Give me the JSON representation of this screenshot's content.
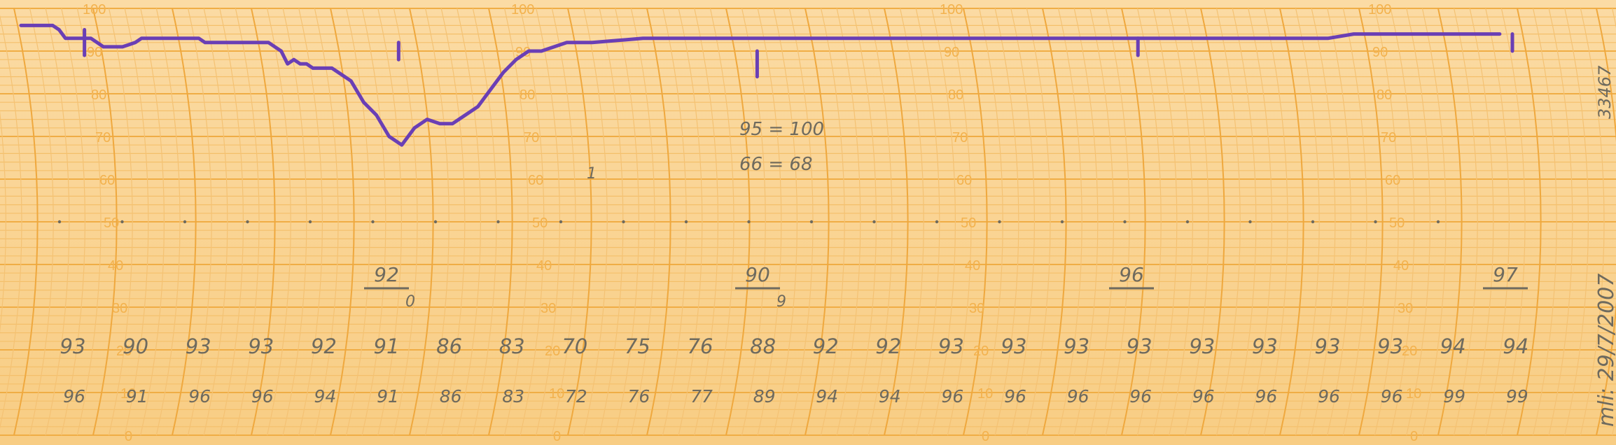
{
  "chart_data": {
    "type": "line",
    "title": "",
    "xlabel": "",
    "ylabel": "",
    "ylim": [
      0,
      100
    ],
    "scale_labels": [
      "0",
      "10",
      "20",
      "30",
      "40",
      "50",
      "60",
      "70",
      "80",
      "90",
      "100"
    ],
    "scale_columns": 4,
    "series": [
      {
        "name": "",
        "color": "#6a3fb5",
        "x": [
          0,
          0.1,
          0.2,
          0.3,
          0.4,
          0.5,
          0.6,
          0.7,
          0.8,
          0.9,
          1.0,
          1.1,
          1.2,
          1.3,
          1.4,
          1.5,
          1.6,
          1.7,
          1.8,
          1.9,
          2.0,
          2.1,
          2.2,
          2.3,
          2.4,
          2.5,
          2.6,
          2.7,
          2.8,
          2.9,
          3.0,
          3.1,
          3.2,
          3.3,
          3.4,
          3.5,
          3.6,
          3.7,
          3.8,
          3.9,
          4.0,
          4.1,
          4.2,
          4.3,
          4.4,
          4.5,
          4.6,
          4.7,
          4.8,
          4.9,
          5.0,
          5.2,
          5.4,
          5.6,
          5.8,
          6.0,
          6.2,
          6.4,
          6.6,
          6.8,
          7.0,
          7.2,
          7.4,
          7.6,
          7.8,
          8.0,
          8.2,
          8.4,
          8.6,
          8.8,
          9.0,
          9.4,
          9.8,
          10.2,
          10.6,
          11.0,
          11.4,
          11.8,
          12.2,
          12.6,
          13.0,
          13.4,
          13.8,
          14.2,
          14.6,
          15.0,
          15.4,
          15.8,
          16.2,
          16.6,
          17.0,
          17.4,
          17.8,
          18.2,
          18.6,
          19.0,
          19.4,
          19.8,
          20.2,
          20.6,
          21.0,
          21.4,
          21.8,
          22.2,
          22.6,
          23.0,
          23.3
        ],
        "values": [
          96,
          96,
          96,
          96,
          96,
          96,
          95,
          93,
          93,
          93,
          93,
          93,
          92,
          91,
          91,
          91,
          91,
          91.5,
          92,
          93,
          93,
          93,
          93,
          93,
          93,
          93,
          93,
          93,
          93,
          92,
          92,
          92,
          92,
          92,
          92,
          92,
          92,
          92,
          92,
          92,
          91,
          90,
          87,
          88,
          87,
          87,
          86,
          86,
          86,
          86,
          85,
          83,
          78,
          75,
          70,
          68,
          72,
          74,
          73,
          73,
          75,
          77,
          81,
          85,
          88,
          90,
          90,
          91,
          92,
          92,
          92,
          92.5,
          93,
          93,
          93,
          93,
          93,
          93,
          93,
          93,
          93,
          93,
          93,
          93,
          93,
          93,
          93,
          93,
          93,
          93,
          93,
          93,
          93,
          93,
          93,
          93,
          93,
          93,
          93,
          93,
          94,
          94,
          94,
          94,
          94,
          94,
          94
        ]
      }
    ],
    "markers": [
      {
        "x": 1.0,
        "top": 95,
        "bottom": 89
      },
      {
        "x": 5.95,
        "top": 92,
        "bottom": 88
      },
      {
        "x": 11.6,
        "top": 90,
        "bottom": 84
      },
      {
        "x": 17.6,
        "top": 93,
        "bottom": 89
      },
      {
        "x": 23.5,
        "top": 94,
        "bottom": 90
      }
    ],
    "annotations": {
      "row1": [
        "93",
        "90",
        "93",
        "93",
        "92",
        "91",
        "86",
        "83",
        "70",
        "75",
        "76",
        "88",
        "92",
        "92",
        "93",
        "93",
        "93",
        "93",
        "93",
        "93",
        "93",
        "93",
        "94",
        "94"
      ],
      "row2": [
        "96",
        "91",
        "96",
        "96",
        "94",
        "91",
        "86",
        "83",
        "72",
        "76",
        "77",
        "89",
        "94",
        "94",
        "96",
        "96",
        "96",
        "96",
        "96",
        "96",
        "96",
        "96",
        "99",
        "99"
      ],
      "fractions": [
        {
          "num": "92",
          "den": "0"
        },
        {
          "num": "90",
          "den": "9"
        },
        {
          "num": "96",
          "den": ""
        },
        {
          "num": "97",
          "den": ""
        }
      ],
      "calib_1": "95 = 100",
      "calib_2": "66 = 68",
      "min_mark": "1",
      "side_note": "33467",
      "side_date": "mli: 29/7/2007"
    }
  }
}
